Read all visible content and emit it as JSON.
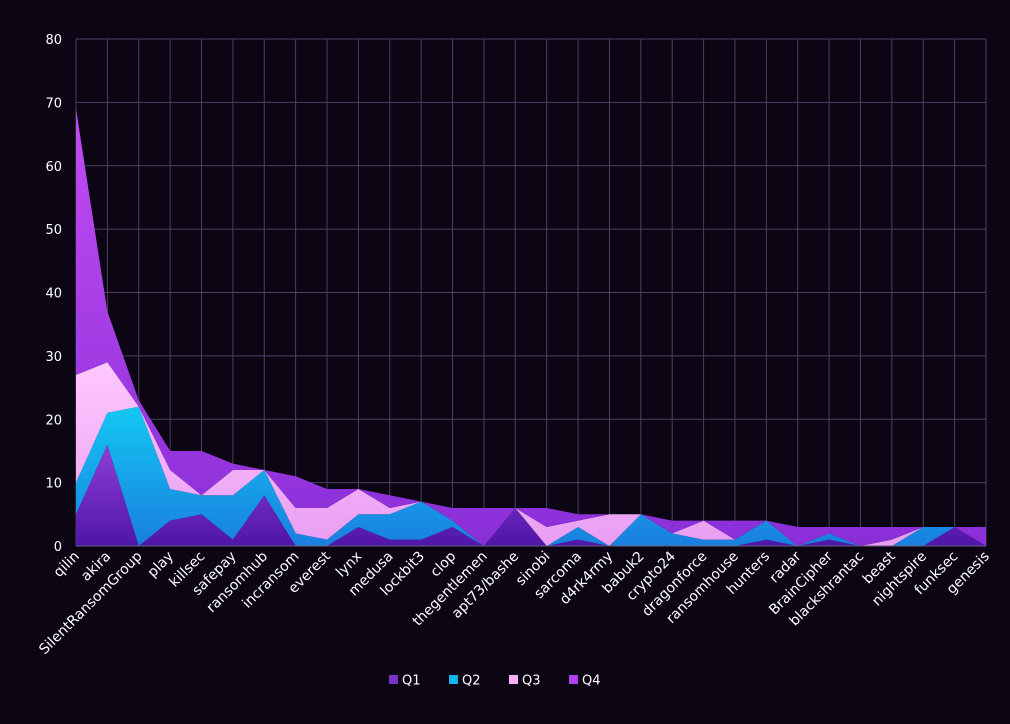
{
  "chart_data": {
    "type": "area",
    "stacked": true,
    "title": "",
    "xlabel": "",
    "ylabel": "",
    "ylim": [
      0,
      80
    ],
    "yticks": [
      0,
      10,
      20,
      30,
      40,
      50,
      60,
      70,
      80
    ],
    "grid": true,
    "legend_position": "bottom-center",
    "categories": [
      "qilin",
      "akira",
      "SilentRansomGroup",
      "play",
      "killsec",
      "safepay",
      "ransomhub",
      "incransom",
      "everest",
      "lynx",
      "medusa",
      "lockbit3",
      "clop",
      "thegentlemen",
      "apt73/bashe",
      "sinobi",
      "sarcoma",
      "d4rk4rmy",
      "babuk2",
      "crypto24",
      "dragonforce",
      "ransomhouse",
      "hunters",
      "radar",
      "BrainCipher",
      "blackshrantac",
      "beast",
      "nightspire",
      "funksec",
      "genesis"
    ],
    "series": [
      {
        "name": "Q1",
        "color": "#7b30c8",
        "values": [
          5,
          16,
          0,
          4,
          5,
          1,
          8,
          0,
          0,
          3,
          1,
          1,
          3,
          0,
          6,
          0,
          1,
          0,
          0,
          0,
          0,
          0,
          1,
          0,
          1,
          0,
          0,
          0,
          3,
          0
        ]
      },
      {
        "name": "Q2",
        "color": "#10b4ea",
        "values": [
          5,
          5,
          22,
          5,
          3,
          7,
          4,
          2,
          1,
          2,
          4,
          6,
          1,
          0,
          0,
          0,
          2,
          0,
          5,
          2,
          1,
          1,
          3,
          0,
          1,
          0,
          0,
          3,
          0,
          0
        ]
      },
      {
        "name": "Q3",
        "color": "#f6b2f6",
        "values": [
          17,
          8,
          0,
          3,
          0,
          4,
          0,
          4,
          5,
          4,
          1,
          0,
          0,
          0,
          0,
          3,
          1,
          5,
          0,
          0,
          3,
          0,
          0,
          0,
          0,
          0,
          1,
          0,
          0,
          0
        ]
      },
      {
        "name": "Q4",
        "color": "#b23ff0",
        "values": [
          42,
          8,
          1,
          3,
          7,
          1,
          0,
          5,
          3,
          0,
          2,
          0,
          2,
          6,
          0,
          3,
          1,
          0,
          0,
          2,
          0,
          3,
          0,
          3,
          1,
          3,
          2,
          0,
          0,
          3
        ]
      }
    ]
  }
}
